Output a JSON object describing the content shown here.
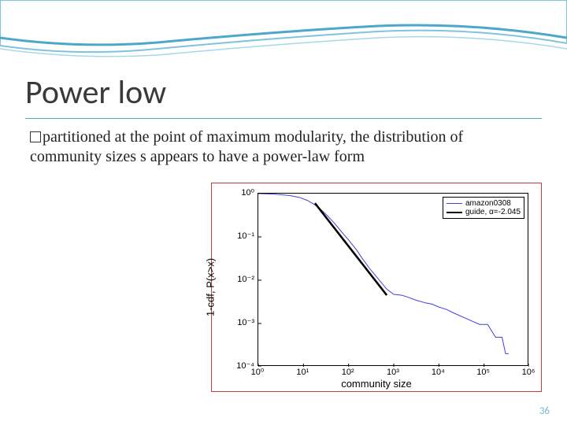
{
  "slide": {
    "title": "Power low",
    "body": "partitioned at the point of maximum modularity, the distribution of community sizes s appears to have a power-law form",
    "number": "36"
  },
  "decoration": {
    "wave_color_outer": "#4aa8c8",
    "wave_color_inner": "#7ec4de",
    "underline_color": "#5aa8c8"
  },
  "chart": {
    "type": "line",
    "border_color": "#c04040",
    "x_label": "community size",
    "y_label": "1-cdf, P(x>x)",
    "x_scale": "log",
    "y_scale": "log",
    "x_ticks": [
      1,
      10,
      100,
      1000,
      10000,
      100000,
      1000000
    ],
    "x_tick_labels": [
      "10⁰",
      "10¹",
      "10²",
      "10³",
      "10⁴",
      "10⁵",
      "10⁶"
    ],
    "y_ticks": [
      1,
      0.1,
      0.01,
      0.001,
      0.0001
    ],
    "y_tick_labels": [
      "10⁰",
      "10⁻¹",
      "10⁻²",
      "10⁻³",
      "10⁻⁴"
    ],
    "xlim": [
      1,
      1000000
    ],
    "ylim": [
      0.0001,
      1
    ],
    "legend": [
      {
        "label": "amazon0308",
        "color": "#4040e0",
        "width": 1
      },
      {
        "label": "guide, α=-2.045",
        "color": "#000000",
        "width": 2.5
      }
    ],
    "series_data": {
      "color": "#4040e0",
      "points": [
        [
          1,
          1.0
        ],
        [
          2,
          0.98
        ],
        [
          3,
          0.95
        ],
        [
          5,
          0.9
        ],
        [
          8,
          0.82
        ],
        [
          12,
          0.7
        ],
        [
          18,
          0.55
        ],
        [
          25,
          0.42
        ],
        [
          35,
          0.3
        ],
        [
          50,
          0.2
        ],
        [
          70,
          0.13
        ],
        [
          100,
          0.085
        ],
        [
          150,
          0.05
        ],
        [
          200,
          0.032
        ],
        [
          300,
          0.018
        ],
        [
          500,
          0.0095
        ],
        [
          700,
          0.0062
        ],
        [
          1000,
          0.0047
        ],
        [
          1500,
          0.0045
        ],
        [
          2000,
          0.0041
        ],
        [
          3000,
          0.0035
        ],
        [
          5000,
          0.003
        ],
        [
          7000,
          0.0028
        ],
        [
          10000,
          0.0024
        ],
        [
          15000,
          0.0021
        ],
        [
          20000,
          0.0018
        ],
        [
          40000,
          0.0013
        ],
        [
          80000,
          0.00095
        ],
        [
          120000,
          0.00095
        ],
        [
          180000,
          0.00048
        ],
        [
          250000,
          0.00048
        ],
        [
          300000,
          0.0002
        ],
        [
          350000,
          0.0002
        ]
      ]
    },
    "series_guide": {
      "color": "#000000",
      "width": 2.5,
      "points": [
        [
          18,
          0.6
        ],
        [
          700,
          0.0045
        ]
      ]
    }
  }
}
